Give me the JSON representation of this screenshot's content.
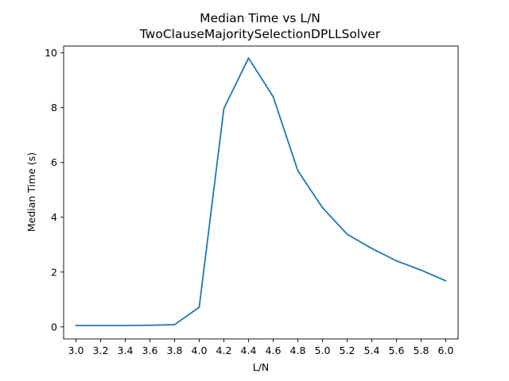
{
  "chart_data": {
    "type": "line",
    "title": "Median Time vs L/N",
    "subtitle": "TwoClauseMajoritySelectionDPLLSolver",
    "xlabel": "L/N",
    "ylabel": "Median Time (s)",
    "xlim": [
      2.9,
      6.1
    ],
    "ylim": [
      -0.44,
      10.25
    ],
    "xticks": [
      "3.0",
      "3.2",
      "3.4",
      "3.6",
      "3.8",
      "4.0",
      "4.2",
      "4.4",
      "4.6",
      "4.8",
      "5.0",
      "5.2",
      "5.4",
      "5.6",
      "5.8",
      "6.0"
    ],
    "yticks": [
      "0",
      "2",
      "4",
      "6",
      "8",
      "10"
    ],
    "grid": false,
    "color": "#1f77b4",
    "x": [
      3.0,
      3.2,
      3.4,
      3.6,
      3.8,
      4.0,
      4.2,
      4.4,
      4.6,
      4.8,
      5.0,
      5.2,
      5.4,
      5.6,
      5.8,
      6.0
    ],
    "y": [
      0.05,
      0.05,
      0.05,
      0.06,
      0.08,
      0.72,
      7.97,
      9.81,
      8.4,
      5.7,
      4.35,
      3.38,
      2.86,
      2.41,
      2.07,
      1.68
    ]
  }
}
